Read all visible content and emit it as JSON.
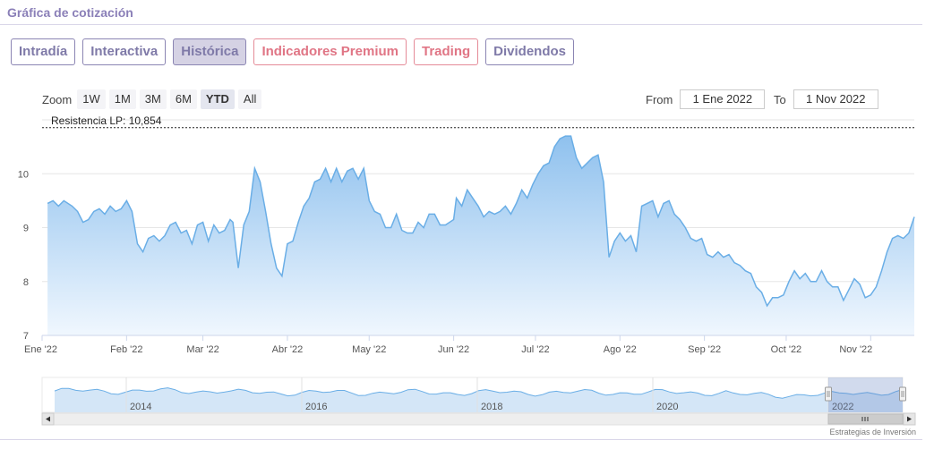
{
  "widget": {
    "title": "Gráfica de cotización"
  },
  "tabs": [
    {
      "label": "Intradía",
      "style": "purple",
      "active": false
    },
    {
      "label": "Interactiva",
      "style": "purple",
      "active": false
    },
    {
      "label": "Histórica",
      "style": "purple",
      "active": true
    },
    {
      "label": "Indicadores Premium",
      "style": "pink",
      "active": false
    },
    {
      "label": "Trading",
      "style": "pink",
      "active": false
    },
    {
      "label": "Dividendos",
      "style": "purple",
      "active": false
    }
  ],
  "zoom": {
    "label": "Zoom",
    "buttons": [
      {
        "label": "1W",
        "active": false
      },
      {
        "label": "1M",
        "active": false
      },
      {
        "label": "3M",
        "active": false
      },
      {
        "label": "6M",
        "active": false
      },
      {
        "label": "YTD",
        "active": true
      },
      {
        "label": "All",
        "active": false
      }
    ]
  },
  "range": {
    "from_label": "From",
    "from_value": "1 Ene 2022",
    "to_label": "To",
    "to_value": "1 Nov 2022"
  },
  "credit": "Estrategias de Inversión",
  "colors": {
    "line": "#6aaee6",
    "fill_top": "#8fc1ee",
    "fill_bottom": "#f0f7fe",
    "purple": "#8b80b8",
    "pink": "#e58b98"
  },
  "chart_data": {
    "type": "area",
    "x_unit": "date",
    "ylim": [
      7,
      11
    ],
    "yticks": [
      "7",
      "8",
      "9",
      "10"
    ],
    "xticks": [
      {
        "label": "Ene '22",
        "date": "2022-01-01"
      },
      {
        "label": "Feb '22",
        "date": "2022-02-01"
      },
      {
        "label": "Mar '22",
        "date": "2022-03-01"
      },
      {
        "label": "Abr '22",
        "date": "2022-04-01"
      },
      {
        "label": "May '22",
        "date": "2022-05-01"
      },
      {
        "label": "Jun '22",
        "date": "2022-06-01"
      },
      {
        "label": "Jul '22",
        "date": "2022-07-01"
      },
      {
        "label": "Ago '22",
        "date": "2022-08-01"
      },
      {
        "label": "Sep '22",
        "date": "2022-09-01"
      },
      {
        "label": "Oct '22",
        "date": "2022-10-01"
      },
      {
        "label": "Nov '22",
        "date": "2022-11-01"
      }
    ],
    "annotation": {
      "label": "Resistencia LP: 10,854",
      "value": 10.854
    },
    "grid": true,
    "series": [
      {
        "points": [
          [
            "2022-01-03",
            9.45
          ],
          [
            "2022-01-05",
            9.5
          ],
          [
            "2022-01-07",
            9.4
          ],
          [
            "2022-01-09",
            9.5
          ],
          [
            "2022-01-12",
            9.4
          ],
          [
            "2022-01-14",
            9.3
          ],
          [
            "2022-01-16",
            9.1
          ],
          [
            "2022-01-18",
            9.15
          ],
          [
            "2022-01-20",
            9.3
          ],
          [
            "2022-01-22",
            9.35
          ],
          [
            "2022-01-24",
            9.25
          ],
          [
            "2022-01-26",
            9.4
          ],
          [
            "2022-01-28",
            9.3
          ],
          [
            "2022-01-30",
            9.35
          ],
          [
            "2022-02-01",
            9.5
          ],
          [
            "2022-02-03",
            9.3
          ],
          [
            "2022-02-05",
            8.7
          ],
          [
            "2022-02-07",
            8.55
          ],
          [
            "2022-02-09",
            8.8
          ],
          [
            "2022-02-11",
            8.85
          ],
          [
            "2022-02-13",
            8.75
          ],
          [
            "2022-02-15",
            8.85
          ],
          [
            "2022-02-17",
            9.05
          ],
          [
            "2022-02-19",
            9.1
          ],
          [
            "2022-02-21",
            8.9
          ],
          [
            "2022-02-23",
            8.95
          ],
          [
            "2022-02-25",
            8.7
          ],
          [
            "2022-02-27",
            9.05
          ],
          [
            "2022-03-01",
            9.1
          ],
          [
            "2022-03-03",
            8.75
          ],
          [
            "2022-03-05",
            9.05
          ],
          [
            "2022-03-07",
            8.9
          ],
          [
            "2022-03-09",
            8.95
          ],
          [
            "2022-03-11",
            9.15
          ],
          [
            "2022-03-12",
            9.1
          ],
          [
            "2022-03-14",
            8.25
          ],
          [
            "2022-03-16",
            9.05
          ],
          [
            "2022-03-18",
            9.3
          ],
          [
            "2022-03-20",
            10.1
          ],
          [
            "2022-03-22",
            9.85
          ],
          [
            "2022-03-24",
            9.3
          ],
          [
            "2022-03-26",
            8.7
          ],
          [
            "2022-03-28",
            8.25
          ],
          [
            "2022-03-30",
            8.1
          ],
          [
            "2022-04-01",
            8.7
          ],
          [
            "2022-04-03",
            8.75
          ],
          [
            "2022-04-05",
            9.1
          ],
          [
            "2022-04-07",
            9.4
          ],
          [
            "2022-04-09",
            9.55
          ],
          [
            "2022-04-11",
            9.85
          ],
          [
            "2022-04-13",
            9.9
          ],
          [
            "2022-04-15",
            10.1
          ],
          [
            "2022-04-17",
            9.85
          ],
          [
            "2022-04-19",
            10.1
          ],
          [
            "2022-04-21",
            9.85
          ],
          [
            "2022-04-23",
            10.05
          ],
          [
            "2022-04-25",
            10.1
          ],
          [
            "2022-04-27",
            9.9
          ],
          [
            "2022-04-29",
            10.1
          ],
          [
            "2022-05-01",
            9.5
          ],
          [
            "2022-05-03",
            9.3
          ],
          [
            "2022-05-05",
            9.25
          ],
          [
            "2022-05-07",
            9.0
          ],
          [
            "2022-05-09",
            9.0
          ],
          [
            "2022-05-11",
            9.25
          ],
          [
            "2022-05-13",
            8.95
          ],
          [
            "2022-05-15",
            8.9
          ],
          [
            "2022-05-17",
            8.9
          ],
          [
            "2022-05-19",
            9.1
          ],
          [
            "2022-05-21",
            9.0
          ],
          [
            "2022-05-23",
            9.25
          ],
          [
            "2022-05-25",
            9.25
          ],
          [
            "2022-05-27",
            9.05
          ],
          [
            "2022-05-29",
            9.05
          ],
          [
            "2022-06-01",
            9.15
          ],
          [
            "2022-06-02",
            9.55
          ],
          [
            "2022-06-04",
            9.4
          ],
          [
            "2022-06-06",
            9.7
          ],
          [
            "2022-06-08",
            9.55
          ],
          [
            "2022-06-10",
            9.4
          ],
          [
            "2022-06-12",
            9.2
          ],
          [
            "2022-06-14",
            9.3
          ],
          [
            "2022-06-16",
            9.25
          ],
          [
            "2022-06-18",
            9.3
          ],
          [
            "2022-06-20",
            9.4
          ],
          [
            "2022-06-22",
            9.25
          ],
          [
            "2022-06-24",
            9.45
          ],
          [
            "2022-06-26",
            9.7
          ],
          [
            "2022-06-28",
            9.55
          ],
          [
            "2022-06-30",
            9.8
          ],
          [
            "2022-07-02",
            10.0
          ],
          [
            "2022-07-04",
            10.15
          ],
          [
            "2022-07-06",
            10.2
          ],
          [
            "2022-07-08",
            10.5
          ],
          [
            "2022-07-10",
            10.65
          ],
          [
            "2022-07-12",
            10.7
          ],
          [
            "2022-07-14",
            10.7
          ],
          [
            "2022-07-16",
            10.3
          ],
          [
            "2022-07-18",
            10.1
          ],
          [
            "2022-07-20",
            10.2
          ],
          [
            "2022-07-22",
            10.3
          ],
          [
            "2022-07-24",
            10.35
          ],
          [
            "2022-07-26",
            9.85
          ],
          [
            "2022-07-28",
            8.45
          ],
          [
            "2022-07-30",
            8.75
          ],
          [
            "2022-08-01",
            8.9
          ],
          [
            "2022-08-03",
            8.75
          ],
          [
            "2022-08-05",
            8.85
          ],
          [
            "2022-08-07",
            8.55
          ],
          [
            "2022-08-09",
            9.4
          ],
          [
            "2022-08-11",
            9.45
          ],
          [
            "2022-08-13",
            9.5
          ],
          [
            "2022-08-15",
            9.2
          ],
          [
            "2022-08-17",
            9.45
          ],
          [
            "2022-08-19",
            9.5
          ],
          [
            "2022-08-21",
            9.25
          ],
          [
            "2022-08-23",
            9.15
          ],
          [
            "2022-08-25",
            9.0
          ],
          [
            "2022-08-27",
            8.8
          ],
          [
            "2022-08-29",
            8.75
          ],
          [
            "2022-08-31",
            8.8
          ],
          [
            "2022-09-02",
            8.5
          ],
          [
            "2022-09-04",
            8.45
          ],
          [
            "2022-09-06",
            8.55
          ],
          [
            "2022-09-08",
            8.45
          ],
          [
            "2022-09-10",
            8.5
          ],
          [
            "2022-09-12",
            8.35
          ],
          [
            "2022-09-14",
            8.3
          ],
          [
            "2022-09-16",
            8.2
          ],
          [
            "2022-09-18",
            8.15
          ],
          [
            "2022-09-20",
            7.9
          ],
          [
            "2022-09-22",
            7.8
          ],
          [
            "2022-09-24",
            7.55
          ],
          [
            "2022-09-26",
            7.7
          ],
          [
            "2022-09-28",
            7.7
          ],
          [
            "2022-09-30",
            7.75
          ],
          [
            "2022-10-02",
            8.0
          ],
          [
            "2022-10-04",
            8.2
          ],
          [
            "2022-10-06",
            8.05
          ],
          [
            "2022-10-08",
            8.15
          ],
          [
            "2022-10-10",
            8.0
          ],
          [
            "2022-10-12",
            8.0
          ],
          [
            "2022-10-14",
            8.2
          ],
          [
            "2022-10-16",
            8.0
          ],
          [
            "2022-10-18",
            7.9
          ],
          [
            "2022-10-20",
            7.9
          ],
          [
            "2022-10-22",
            7.65
          ],
          [
            "2022-10-24",
            7.85
          ],
          [
            "2022-10-26",
            8.05
          ],
          [
            "2022-10-28",
            7.95
          ],
          [
            "2022-10-30",
            7.7
          ],
          [
            "2022-11-01",
            7.75
          ],
          [
            "2022-11-03",
            7.9
          ],
          [
            "2022-11-05",
            8.2
          ],
          [
            "2022-11-07",
            8.55
          ],
          [
            "2022-11-09",
            8.8
          ],
          [
            "2022-11-11",
            8.85
          ],
          [
            "2022-11-13",
            8.8
          ],
          [
            "2022-11-15",
            8.9
          ],
          [
            "2022-11-17",
            9.2
          ]
        ]
      }
    ],
    "navigator": {
      "xticks": [
        "2014",
        "2016",
        "2018",
        "2020",
        "2022"
      ],
      "selection_start_year": 2022
    }
  }
}
